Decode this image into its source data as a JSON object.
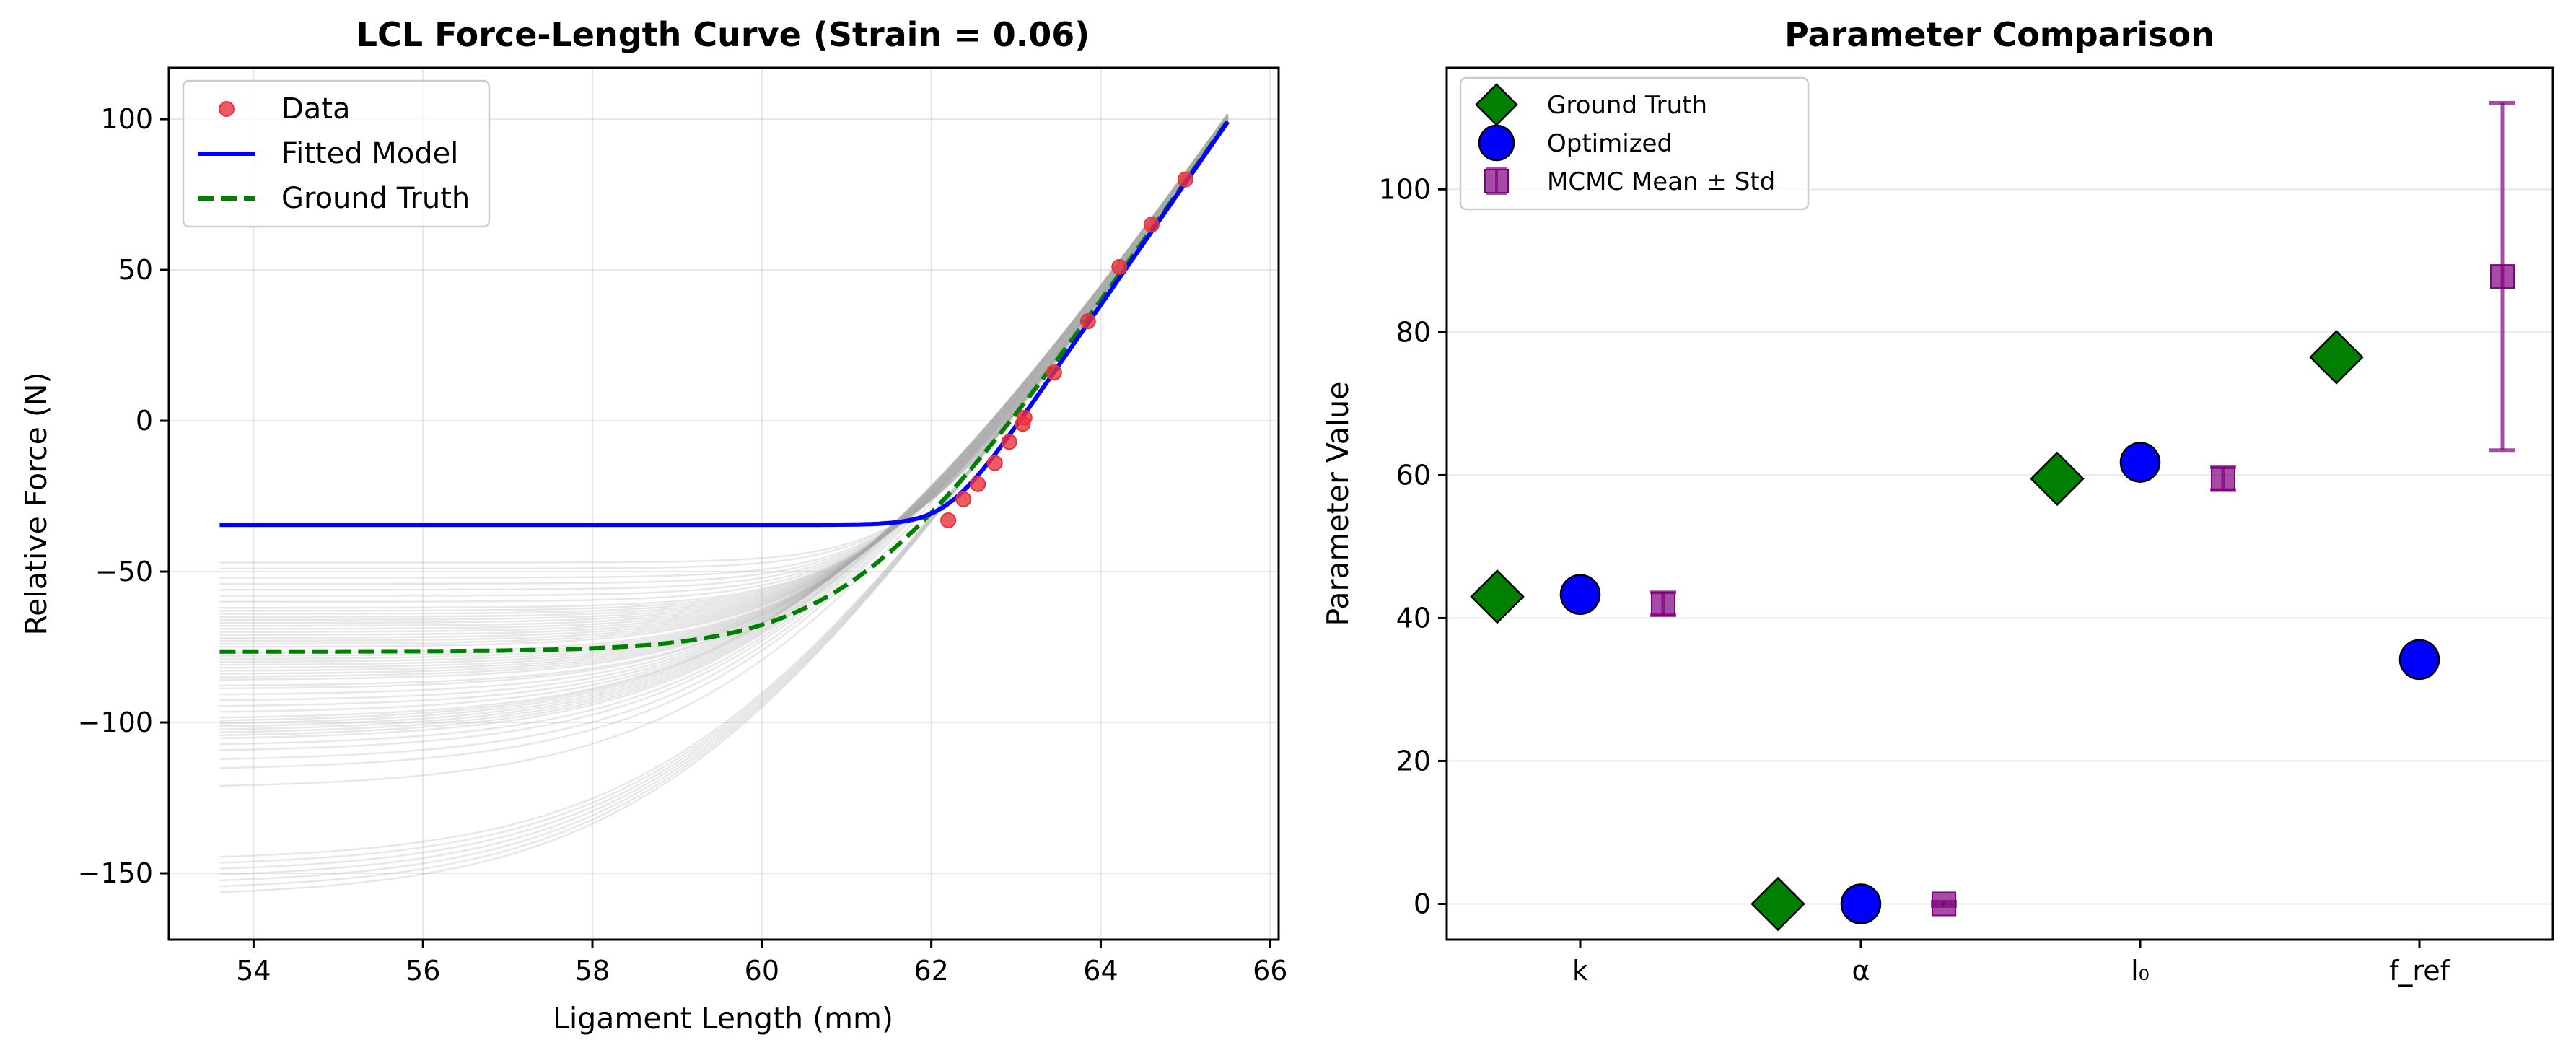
{
  "chart_data": [
    {
      "type": "line",
      "title": "LCL Force-Length Curve (Strain = 0.06)",
      "xlabel": "Ligament Length (mm)",
      "ylabel": "Relative Force (N)",
      "xlim": [
        53,
        66.1
      ],
      "ylim": [
        -172,
        117
      ],
      "xticks": [
        54,
        56,
        58,
        60,
        62,
        64,
        66
      ],
      "yticks": [
        100,
        50,
        0,
        -50,
        -100,
        -150
      ],
      "xticklabels": [
        "54",
        "56",
        "58",
        "60",
        "62",
        "64",
        "66"
      ],
      "yticklabels": [
        "100",
        "50",
        "0",
        "−50",
        "−100",
        "−150"
      ],
      "grid": true,
      "legend_location": "upper-left",
      "legend": [
        "Data",
        "Fitted Model",
        "Ground Truth"
      ],
      "colors": {
        "data": "#e8323c",
        "fitted": "#0000ff",
        "truth": "#008000",
        "samples": "#a9a9a9"
      },
      "x_range": [
        53.6,
        65.5
      ],
      "fitted_model": {
        "name": "Fitted Model",
        "slope": 40.5,
        "transition_point": [
          62.2,
          -34.5
        ],
        "transition_width": 0.25
      },
      "ground_truth": {
        "name": "Ground Truth",
        "slope": 40.5,
        "transition_point": [
          62.2,
          -34.5
        ],
        "plateau": -76.5,
        "transition_width": 0.9
      },
      "data_points": {
        "name": "Data",
        "x": [
          62.2,
          62.38,
          62.55,
          62.75,
          62.92,
          63.08,
          63.1,
          63.45,
          63.85,
          64.22,
          64.6,
          65.0
        ],
        "y": [
          -33,
          -26,
          -21,
          -14,
          -7,
          -1,
          1,
          16,
          33,
          51,
          65,
          80
        ]
      },
      "mcmc_sample_plateaus": [
        -47,
        -49,
        -52,
        -54,
        -56,
        -58,
        -60,
        -62,
        -63,
        -64,
        -65,
        -66,
        -67,
        -68,
        -69,
        -70,
        -71,
        -72,
        -73,
        -74,
        -75,
        -77,
        -78,
        -79,
        -80,
        -81,
        -82,
        -83,
        -84,
        -85,
        -86,
        -88,
        -89,
        -91,
        -93,
        -95,
        -97,
        -99,
        -100,
        -101,
        -102,
        -103,
        -104,
        -105,
        -106,
        -108,
        -110,
        -113,
        -116,
        -122,
        -146,
        -148,
        -150,
        -152,
        -154,
        -156,
        -158
      ]
    },
    {
      "type": "scatter",
      "title": "Parameter Comparison",
      "xlabel": "",
      "ylabel": "Parameter Value",
      "categories": [
        "k",
        "α",
        "l₀",
        "f_ref"
      ],
      "ylim": [
        -5,
        117
      ],
      "yticks": [
        0,
        20,
        40,
        60,
        80,
        100
      ],
      "yticklabels": [
        "0",
        "20",
        "40",
        "60",
        "80",
        "100"
      ],
      "grid": true,
      "legend_location": "upper-left",
      "series": [
        {
          "name": "Ground Truth",
          "marker": "diamond",
          "color": "#008000",
          "values": [
            43,
            0,
            59.5,
            76.5
          ]
        },
        {
          "name": "Optimized",
          "marker": "circle",
          "color": "#0000ff",
          "values": [
            43.3,
            0,
            61.8,
            34.2
          ]
        },
        {
          "name": "MCMC Mean ± Std",
          "marker": "square",
          "color": "#800080",
          "values": [
            42,
            0,
            59.5,
            87.8
          ],
          "std": [
            1.6,
            0.3,
            1.6,
            24.3
          ]
        }
      ]
    }
  ]
}
